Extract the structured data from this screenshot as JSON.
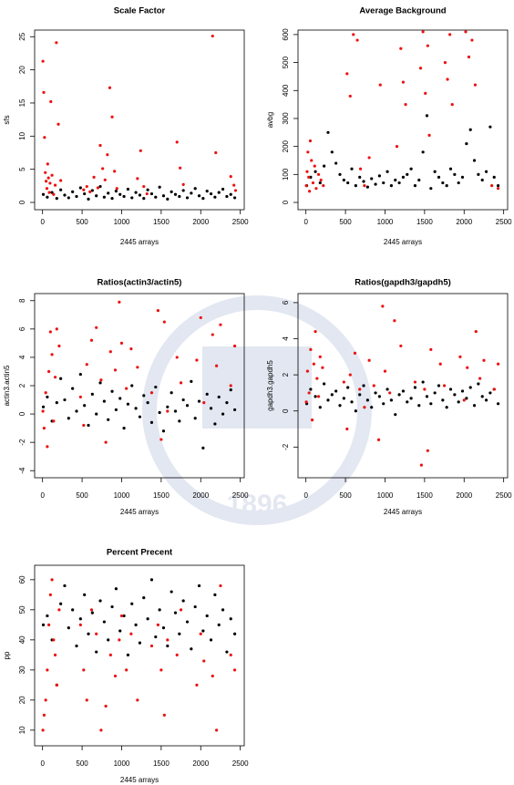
{
  "watermark": "1896",
  "chart_data": [
    {
      "type": "scatter",
      "title": "Scale Factor",
      "x_label": "2445 arrays",
      "y_label": "sfs",
      "xlim": [
        -100,
        2550
      ],
      "xticks": [
        0,
        500,
        1000,
        1500,
        2000,
        2500
      ],
      "ylim": [
        -1.1,
        26
      ],
      "yticks": [
        0,
        5,
        10,
        15,
        20,
        25
      ],
      "series": [
        {
          "color": "#000000",
          "x": [
            10,
            60,
            120,
            180,
            230,
            280,
            330,
            380,
            430,
            480,
            530,
            580,
            630,
            680,
            730,
            780,
            830,
            880,
            930,
            980,
            1030,
            1080,
            1130,
            1180,
            1230,
            1280,
            1330,
            1380,
            1430,
            1480,
            1530,
            1580,
            1630,
            1680,
            1730,
            1780,
            1830,
            1880,
            1930,
            1980,
            2030,
            2080,
            2130,
            2180,
            2230,
            2280,
            2330,
            2380,
            2430
          ],
          "values": [
            1.2,
            0.8,
            1.5,
            0.6,
            1.9,
            1.1,
            0.7,
            1.6,
            0.9,
            2.2,
            1.3,
            0.5,
            1.8,
            1.0,
            2.4,
            0.8,
            1.4,
            0.6,
            1.7,
            1.2,
            0.9,
            2.0,
            0.7,
            1.5,
            1.1,
            0.6,
            1.9,
            1.3,
            0.8,
            2.3,
            1.0,
            0.5,
            1.6,
            1.2,
            0.9,
            1.8,
            0.7,
            1.4,
            2.1,
            1.0,
            0.6,
            1.7,
            1.3,
            0.8,
            1.5,
            2.0,
            0.9,
            1.2,
            0.7
          ]
        },
        {
          "color": "#ee1111",
          "x": [
            5,
            15,
            25,
            35,
            45,
            55,
            65,
            75,
            85,
            95,
            105,
            120,
            140,
            160,
            175,
            200,
            230,
            520,
            560,
            600,
            650,
            700,
            730,
            760,
            790,
            820,
            850,
            880,
            910,
            940,
            1200,
            1240,
            1280,
            1320,
            1700,
            1740,
            1780,
            2150,
            2190,
            2380,
            2420,
            2440
          ],
          "values": [
            21.3,
            16.6,
            9.8,
            4.5,
            3.2,
            2.1,
            5.8,
            3.7,
            1.5,
            2.9,
            15.2,
            4.1,
            1.2,
            2.6,
            24.1,
            11.8,
            3.3,
            1.9,
            2.4,
            1.6,
            3.8,
            2.2,
            8.6,
            5.1,
            3.4,
            7.2,
            17.3,
            12.9,
            4.7,
            2.1,
            3.6,
            7.8,
            2.4,
            1.3,
            9.1,
            5.2,
            2.7,
            25.1,
            7.5,
            3.9,
            2.6,
            1.8
          ]
        }
      ]
    },
    {
      "type": "scatter",
      "title": "Average Background",
      "x_label": "2445 arrays",
      "y_label": "avbg",
      "xlim": [
        -100,
        2550
      ],
      "xticks": [
        0,
        500,
        1000,
        1500,
        2000,
        2500
      ],
      "ylim": [
        -26,
        616
      ],
      "yticks": [
        0,
        100,
        200,
        300,
        400,
        500,
        600
      ],
      "series": [
        {
          "color": "#000000",
          "x": [
            10,
            60,
            120,
            180,
            230,
            280,
            330,
            380,
            430,
            480,
            530,
            580,
            630,
            680,
            730,
            780,
            830,
            880,
            930,
            980,
            1030,
            1080,
            1130,
            1180,
            1230,
            1280,
            1330,
            1380,
            1430,
            1480,
            1530,
            1580,
            1630,
            1680,
            1730,
            1780,
            1830,
            1880,
            1930,
            1980,
            2030,
            2080,
            2130,
            2180,
            2230,
            2280,
            2330,
            2380,
            2430
          ],
          "values": [
            60,
            90,
            110,
            70,
            130,
            250,
            180,
            140,
            100,
            80,
            70,
            120,
            60,
            90,
            75,
            55,
            85,
            65,
            95,
            70,
            110,
            60,
            80,
            70,
            90,
            100,
            120,
            60,
            80,
            180,
            310,
            50,
            110,
            90,
            70,
            60,
            120,
            100,
            70,
            90,
            210,
            260,
            150,
            100,
            80,
            110,
            270,
            90,
            60
          ]
        },
        {
          "color": "#ee1111",
          "x": [
            5,
            15,
            25,
            35,
            45,
            55,
            70,
            90,
            110,
            130,
            160,
            190,
            220,
            520,
            560,
            600,
            650,
            690,
            740,
            800,
            940,
            1150,
            1200,
            1230,
            1260,
            1450,
            1480,
            1510,
            1540,
            1560,
            1760,
            1790,
            1820,
            1850,
            2020,
            2060,
            2100,
            2140,
            2350,
            2430
          ],
          "values": [
            60,
            110,
            180,
            90,
            40,
            220,
            150,
            70,
            130,
            50,
            100,
            80,
            60,
            460,
            380,
            600,
            580,
            120,
            60,
            160,
            420,
            200,
            550,
            430,
            350,
            480,
            610,
            390,
            560,
            240,
            500,
            440,
            600,
            350,
            610,
            520,
            580,
            420,
            60,
            50
          ]
        }
      ]
    },
    {
      "type": "scatter",
      "title": "Ratios(actin3/actin5)",
      "x_label": "2445 arrays",
      "y_label": "actin3.actin5",
      "xlim": [
        -100,
        2550
      ],
      "xticks": [
        0,
        500,
        1000,
        1500,
        2000,
        2500
      ],
      "ylim": [
        -4.5,
        8.5
      ],
      "yticks": [
        -4,
        -2,
        0,
        2,
        4,
        6,
        8
      ],
      "series": [
        {
          "color": "#000000",
          "x": [
            10,
            60,
            120,
            180,
            230,
            280,
            330,
            380,
            430,
            480,
            530,
            580,
            630,
            680,
            730,
            780,
            830,
            880,
            930,
            980,
            1030,
            1080,
            1130,
            1180,
            1230,
            1280,
            1330,
            1380,
            1430,
            1480,
            1530,
            1580,
            1630,
            1680,
            1730,
            1780,
            1830,
            1880,
            1930,
            1980,
            2030,
            2080,
            2130,
            2180,
            2230,
            2280,
            2330,
            2380,
            2430
          ],
          "values": [
            0.5,
            1.2,
            -0.5,
            0.8,
            2.5,
            1.0,
            -0.3,
            1.8,
            0.2,
            2.8,
            0.6,
            -0.8,
            1.4,
            0.0,
            2.2,
            0.9,
            -0.4,
            1.6,
            0.3,
            1.1,
            -1.0,
            0.7,
            2.0,
            0.4,
            -0.2,
            1.3,
            0.8,
            -0.6,
            1.9,
            0.1,
            -1.2,
            0.5,
            1.5,
            0.2,
            -0.5,
            1.0,
            0.6,
            2.3,
            -0.3,
            0.9,
            -2.4,
            1.4,
            0.4,
            -0.7,
            1.2,
            0.0,
            0.8,
            1.7,
            0.3
          ]
        },
        {
          "color": "#ee1111",
          "x": [
            5,
            20,
            40,
            60,
            80,
            100,
            120,
            140,
            160,
            180,
            210,
            480,
            520,
            560,
            620,
            680,
            740,
            800,
            860,
            920,
            970,
            1000,
            1060,
            1120,
            1200,
            1380,
            1460,
            1500,
            1540,
            1580,
            1700,
            1750,
            1950,
            2000,
            2040,
            2150,
            2200,
            2250,
            2380,
            2430
          ],
          "values": [
            0.2,
            -1.0,
            1.5,
            -2.3,
            3.0,
            5.8,
            4.2,
            -0.5,
            2.6,
            6.0,
            4.8,
            1.2,
            -0.8,
            3.5,
            5.2,
            6.1,
            2.4,
            -2.0,
            4.4,
            3.1,
            7.9,
            5.0,
            1.8,
            4.6,
            3.3,
            1.5,
            7.3,
            -1.8,
            6.5,
            0.2,
            4.0,
            2.2,
            3.8,
            6.8,
            0.8,
            5.6,
            3.4,
            6.3,
            2.0,
            4.8
          ]
        }
      ]
    },
    {
      "type": "scatter",
      "title": "Ratios(gapdh3/gapdh5)",
      "x_label": "2445 arrays",
      "y_label": "gapdh3.gapdh5",
      "xlim": [
        -100,
        2550
      ],
      "xticks": [
        0,
        500,
        1000,
        1500,
        2000,
        2500
      ],
      "ylim": [
        -3.7,
        6.5
      ],
      "yticks": [
        -2,
        0,
        2,
        4,
        6
      ],
      "series": [
        {
          "color": "#000000",
          "x": [
            10,
            60,
            120,
            180,
            230,
            280,
            330,
            380,
            430,
            480,
            530,
            580,
            630,
            680,
            730,
            780,
            830,
            880,
            930,
            980,
            1030,
            1080,
            1130,
            1180,
            1230,
            1280,
            1330,
            1380,
            1430,
            1480,
            1530,
            1580,
            1630,
            1680,
            1730,
            1780,
            1830,
            1880,
            1930,
            1980,
            2030,
            2080,
            2130,
            2180,
            2230,
            2280,
            2330,
            2380,
            2430
          ],
          "values": [
            0.4,
            1.2,
            0.8,
            0.2,
            1.5,
            0.6,
            0.9,
            1.1,
            0.3,
            0.7,
            1.3,
            0.5,
            0.0,
            0.9,
            1.4,
            0.6,
            0.2,
            1.0,
            0.8,
            0.4,
            1.2,
            0.6,
            -0.2,
            0.9,
            1.1,
            0.5,
            0.7,
            1.3,
            0.3,
            1.6,
            0.8,
            0.4,
            1.0,
            1.4,
            0.6,
            0.2,
            1.2,
            0.9,
            0.5,
            1.1,
            0.7,
            1.3,
            0.3,
            1.5,
            0.8,
            0.6,
            1.0,
            1.2,
            0.4
          ]
        },
        {
          "color": "#ee1111",
          "x": [
            5,
            20,
            40,
            60,
            80,
            100,
            120,
            140,
            160,
            180,
            210,
            480,
            520,
            560,
            620,
            680,
            740,
            800,
            860,
            920,
            970,
            1000,
            1060,
            1120,
            1200,
            1380,
            1460,
            1500,
            1540,
            1580,
            1700,
            1750,
            1950,
            2000,
            2040,
            2150,
            2200,
            2250,
            2380,
            2430
          ],
          "values": [
            0.5,
            2.2,
            1.0,
            3.4,
            -0.5,
            2.6,
            4.4,
            1.8,
            0.8,
            3.0,
            2.4,
            1.6,
            -1.0,
            2.0,
            3.2,
            1.2,
            0.2,
            2.8,
            1.4,
            -1.6,
            5.8,
            2.2,
            1.0,
            5.0,
            3.6,
            1.6,
            -3.0,
            1.2,
            -2.2,
            3.4,
            2.6,
            1.4,
            3.0,
            0.6,
            2.4,
            4.4,
            1.8,
            2.8,
            1.2,
            2.6
          ]
        }
      ]
    },
    {
      "type": "scatter",
      "title": "Percent Precent",
      "x_label": "2445 arrays",
      "y_label": "pp",
      "xlim": [
        -100,
        2550
      ],
      "xticks": [
        0,
        500,
        1000,
        1500,
        2000,
        2500
      ],
      "ylim": [
        4.8,
        64.8
      ],
      "yticks": [
        10,
        20,
        30,
        40,
        50,
        60
      ],
      "series": [
        {
          "color": "#000000",
          "x": [
            10,
            60,
            120,
            180,
            230,
            280,
            330,
            380,
            430,
            480,
            530,
            580,
            630,
            680,
            730,
            780,
            830,
            880,
            930,
            980,
            1030,
            1080,
            1130,
            1180,
            1230,
            1280,
            1330,
            1380,
            1430,
            1480,
            1530,
            1580,
            1630,
            1680,
            1730,
            1780,
            1830,
            1880,
            1930,
            1980,
            2030,
            2080,
            2130,
            2180,
            2230,
            2280,
            2330,
            2380,
            2430
          ],
          "values": [
            45,
            48,
            40,
            25,
            52,
            58,
            44,
            50,
            38,
            47,
            55,
            42,
            49,
            36,
            53,
            46,
            40,
            51,
            57,
            43,
            48,
            35,
            52,
            45,
            39,
            54,
            47,
            60,
            41,
            50,
            44,
            38,
            56,
            49,
            42,
            53,
            46,
            37,
            51,
            58,
            43,
            48,
            40,
            55,
            45,
            50,
            36,
            47,
            42
          ]
        },
        {
          "color": "#ee1111",
          "x": [
            5,
            20,
            40,
            60,
            80,
            100,
            120,
            140,
            160,
            180,
            210,
            480,
            520,
            560,
            620,
            680,
            740,
            800,
            860,
            920,
            970,
            1000,
            1060,
            1120,
            1200,
            1380,
            1460,
            1500,
            1540,
            1580,
            1700,
            1750,
            1950,
            2000,
            2040,
            2150,
            2200,
            2250,
            2380,
            2430
          ],
          "values": [
            10,
            15,
            20,
            30,
            45,
            55,
            60,
            40,
            35,
            25,
            50,
            45,
            30,
            20,
            50,
            42,
            10,
            18,
            35,
            28,
            40,
            48,
            30,
            42,
            20,
            38,
            45,
            30,
            15,
            40,
            35,
            50,
            25,
            42,
            33,
            28,
            10,
            58,
            35,
            30
          ]
        }
      ]
    }
  ]
}
